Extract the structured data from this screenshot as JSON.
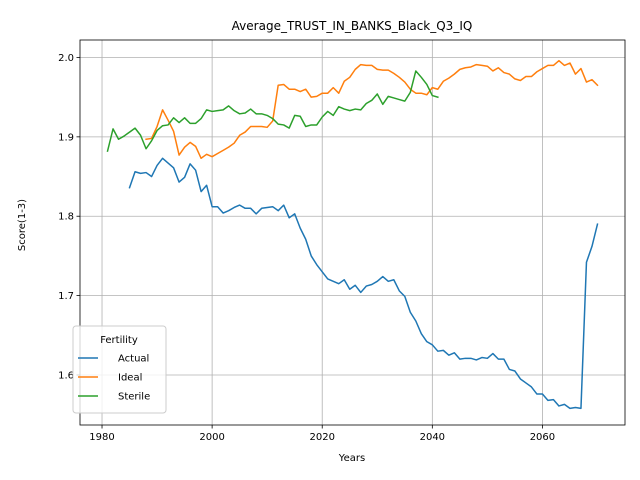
{
  "chart_data": {
    "type": "line",
    "title": "Average_TRUST_IN_BANKS_Black_Q3_IQ",
    "xlabel": "Years",
    "ylabel": "Score(1-3)",
    "xlim": [
      1976,
      2075
    ],
    "ylim": [
      1.537,
      2.022
    ],
    "xticks": [
      1980,
      2000,
      2020,
      2040,
      2060
    ],
    "yticks": [
      1.6,
      1.7,
      1.8,
      1.9,
      2.0
    ],
    "xtick_labels": [
      "1980",
      "2000",
      "2020",
      "2040",
      "2060"
    ],
    "ytick_labels": [
      "1.6",
      "1.7",
      "1.8",
      "1.9",
      "2.0"
    ],
    "grid": true,
    "legend_title": "Fertility",
    "legend_position": "lower-left",
    "series": [
      {
        "name": "Actual",
        "color": "#1f77b4",
        "x": [
          1985,
          1986,
          1987,
          1988,
          1989,
          1990,
          1991,
          1992,
          1993,
          1994,
          1995,
          1996,
          1997,
          1998,
          1999,
          2000,
          2001,
          2002,
          2003,
          2004,
          2005,
          2006,
          2007,
          2008,
          2009,
          2010,
          2011,
          2012,
          2013,
          2014,
          2015,
          2016,
          2017,
          2018,
          2019,
          2020,
          2021,
          2022,
          2023,
          2024,
          2025,
          2026,
          2027,
          2028,
          2029,
          2030,
          2031,
          2032,
          2033,
          2034,
          2035,
          2036,
          2037,
          2038,
          2039,
          2040,
          2041,
          2042,
          2043,
          2044,
          2045,
          2046,
          2047,
          2048,
          2049,
          2050,
          2051,
          2052,
          2053,
          2054,
          2055,
          2056,
          2057,
          2058,
          2059,
          2060,
          2061,
          2062,
          2063,
          2064,
          2065,
          2066,
          2067,
          2068,
          2069,
          2070
        ],
        "y": [
          1.836,
          1.856,
          1.854,
          1.855,
          1.85,
          1.864,
          1.873,
          1.867,
          1.861,
          1.843,
          1.849,
          1.866,
          1.858,
          1.831,
          1.839,
          1.812,
          1.812,
          1.804,
          1.807,
          1.811,
          1.814,
          1.81,
          1.81,
          1.803,
          1.81,
          1.811,
          1.812,
          1.807,
          1.814,
          1.798,
          1.803,
          1.785,
          1.771,
          1.75,
          1.739,
          1.73,
          1.721,
          1.718,
          1.715,
          1.72,
          1.708,
          1.713,
          1.704,
          1.712,
          1.714,
          1.718,
          1.724,
          1.718,
          1.72,
          1.706,
          1.699,
          1.679,
          1.668,
          1.652,
          1.642,
          1.638,
          1.63,
          1.631,
          1.625,
          1.628,
          1.62,
          1.621,
          1.621,
          1.619,
          1.622,
          1.621,
          1.627,
          1.62,
          1.62,
          1.607,
          1.605,
          1.595,
          1.59,
          1.585,
          1.576,
          1.576,
          1.568,
          1.569,
          1.561,
          1.563,
          1.558,
          1.559,
          1.558,
          1.742,
          1.762,
          1.79
        ]
      },
      {
        "name": "Ideal",
        "color": "#ff7f0e",
        "x": [
          1988,
          1989,
          1990,
          1991,
          1992,
          1993,
          1994,
          1995,
          1996,
          1997,
          1998,
          1999,
          2000,
          2001,
          2002,
          2003,
          2004,
          2005,
          2006,
          2007,
          2008,
          2009,
          2010,
          2011,
          2012,
          2013,
          2014,
          2015,
          2016,
          2017,
          2018,
          2019,
          2020,
          2021,
          2022,
          2023,
          2024,
          2025,
          2026,
          2027,
          2028,
          2029,
          2030,
          2031,
          2032,
          2033,
          2034,
          2035,
          2036,
          2037,
          2038,
          2039,
          2040,
          2041,
          2042,
          2043,
          2044,
          2045,
          2046,
          2047,
          2048,
          2049,
          2050,
          2051,
          2052,
          2053,
          2054,
          2055,
          2056,
          2057,
          2058,
          2059,
          2060,
          2061,
          2062,
          2063,
          2064,
          2065,
          2066,
          2067,
          2068,
          2069,
          2070
        ],
        "y": [
          1.897,
          1.898,
          1.913,
          1.934,
          1.921,
          1.907,
          1.877,
          1.887,
          1.893,
          1.888,
          1.873,
          1.878,
          1.875,
          1.879,
          1.883,
          1.887,
          1.892,
          1.902,
          1.906,
          1.913,
          1.913,
          1.913,
          1.912,
          1.92,
          1.965,
          1.966,
          1.96,
          1.96,
          1.957,
          1.96,
          1.95,
          1.951,
          1.955,
          1.955,
          1.962,
          1.955,
          1.97,
          1.975,
          1.985,
          1.991,
          1.99,
          1.99,
          1.985,
          1.984,
          1.984,
          1.98,
          1.975,
          1.969,
          1.96,
          1.955,
          1.955,
          1.953,
          1.962,
          1.96,
          1.97,
          1.974,
          1.979,
          1.985,
          1.987,
          1.988,
          1.991,
          1.99,
          1.989,
          1.983,
          1.987,
          1.981,
          1.979,
          1.973,
          1.971,
          1.976,
          1.976,
          1.982,
          1.986,
          1.99,
          1.99,
          1.996,
          1.99,
          1.993,
          1.979,
          1.986,
          1.969,
          1.972,
          1.965
        ]
      },
      {
        "name": "Sterile",
        "color": "#2ca02c",
        "x": [
          1981,
          1982,
          1983,
          1984,
          1985,
          1986,
          1987,
          1988,
          1989,
          1990,
          1991,
          1992,
          1993,
          1994,
          1995,
          1996,
          1997,
          1998,
          1999,
          2000,
          2001,
          2002,
          2003,
          2004,
          2005,
          2006,
          2007,
          2008,
          2009,
          2010,
          2011,
          2012,
          2013,
          2014,
          2015,
          2016,
          2017,
          2018,
          2019,
          2020,
          2021,
          2022,
          2023,
          2024,
          2025,
          2026,
          2027,
          2028,
          2029,
          2030,
          2031,
          2032,
          2033,
          2034,
          2035,
          2036,
          2037,
          2038,
          2039,
          2040,
          2041
        ],
        "y": [
          1.882,
          1.91,
          1.897,
          1.901,
          1.906,
          1.911,
          1.902,
          1.885,
          1.895,
          1.908,
          1.914,
          1.915,
          1.924,
          1.918,
          1.924,
          1.917,
          1.917,
          1.923,
          1.934,
          1.932,
          1.933,
          1.934,
          1.939,
          1.933,
          1.929,
          1.93,
          1.935,
          1.929,
          1.929,
          1.927,
          1.923,
          1.916,
          1.915,
          1.911,
          1.927,
          1.926,
          1.913,
          1.915,
          1.915,
          1.925,
          1.932,
          1.927,
          1.938,
          1.935,
          1.933,
          1.935,
          1.934,
          1.942,
          1.946,
          1.954,
          1.941,
          1.951,
          1.949,
          1.947,
          1.945,
          1.956,
          1.983,
          1.975,
          1.966,
          1.952,
          1.95
        ]
      }
    ]
  }
}
